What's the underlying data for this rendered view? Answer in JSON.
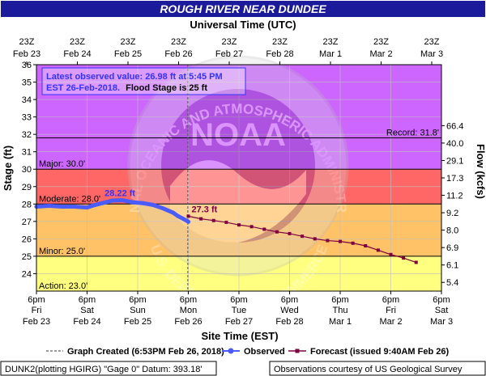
{
  "chart_data": {
    "type": "line",
    "title": "ROUGH RIVER NEAR DUNDEE",
    "top_axis_label": "Universal Time (UTC)",
    "bottom_axis_label": "Site Time (EST)",
    "ylabel_left": "Stage (ft)",
    "ylabel_right": "Flow (kcfs)",
    "ylim": [
      23.0,
      36.0
    ],
    "xlim": [
      "2018-02-23 18:00",
      "2018-03-03 18:00"
    ],
    "left_ticks": [
      24,
      25,
      26,
      27,
      28,
      29,
      30,
      31,
      32,
      33,
      34,
      35,
      36
    ],
    "right_ticks": [
      {
        "stage": 23.5,
        "label": "5.4"
      },
      {
        "stage": 24.5,
        "label": "6.1"
      },
      {
        "stage": 25.5,
        "label": "6.9"
      },
      {
        "stage": 26.5,
        "label": "8.0"
      },
      {
        "stage": 27.5,
        "label": "9.2"
      },
      {
        "stage": 28.5,
        "label": "11.2"
      },
      {
        "stage": 29.5,
        "label": "17.3"
      },
      {
        "stage": 30.5,
        "label": "29.1"
      },
      {
        "stage": 31.5,
        "label": "40.0"
      },
      {
        "stage": 32.5,
        "label": "66.4"
      }
    ],
    "top_ticks": [
      {
        "line1": "23Z",
        "line2": "Feb 23"
      },
      {
        "line1": "23Z",
        "line2": "Feb 24"
      },
      {
        "line1": "23Z",
        "line2": "Feb 25"
      },
      {
        "line1": "23Z",
        "line2": "Feb 26"
      },
      {
        "line1": "23Z",
        "line2": "Feb 27"
      },
      {
        "line1": "23Z",
        "line2": "Feb 28"
      },
      {
        "line1": "23Z",
        "line2": "Mar 1"
      },
      {
        "line1": "23Z",
        "line2": "Mar 2"
      },
      {
        "line1": "23Z",
        "line2": "Mar 3"
      }
    ],
    "bottom_ticks": [
      {
        "line1": "6pm",
        "line2": "Fri",
        "line3": "Feb 23"
      },
      {
        "line1": "6pm",
        "line2": "Sat",
        "line3": "Feb 24"
      },
      {
        "line1": "6pm",
        "line2": "Sun",
        "line3": "Feb 25"
      },
      {
        "line1": "6pm",
        "line2": "Mon",
        "line3": "Feb 26"
      },
      {
        "line1": "6pm",
        "line2": "Tue",
        "line3": "Feb 27"
      },
      {
        "line1": "6pm",
        "line2": "Wed",
        "line3": "Feb 28"
      },
      {
        "line1": "6pm",
        "line2": "Thu",
        "line3": "Mar 1"
      },
      {
        "line1": "6pm",
        "line2": "Fri",
        "line3": "Mar 2"
      },
      {
        "line1": "6pm",
        "line2": "Sat",
        "line3": "Mar 3"
      }
    ],
    "bands": [
      {
        "name": "Action",
        "from": 23.0,
        "to": 25.0,
        "color": "#ffff80",
        "label": "Action: 23.0'"
      },
      {
        "name": "Minor",
        "from": 25.0,
        "to": 28.0,
        "color": "#ffc266",
        "label": "Minor: 25.0'"
      },
      {
        "name": "Moderate",
        "from": 28.0,
        "to": 30.0,
        "color": "#ff6666",
        "label": "Moderate: 28.0'"
      },
      {
        "name": "Major",
        "from": 30.0,
        "to": 36.0,
        "color": "#cc66ff",
        "label": "Major: 30.0'"
      }
    ],
    "record": {
      "stage": 31.8,
      "label": "Record: 31.8'"
    },
    "series": [
      {
        "name": "Observed",
        "color": "#4a5cff",
        "x_days": [
          0.0,
          0.25,
          0.5,
          0.75,
          1.0,
          1.1,
          1.3,
          1.5,
          1.7,
          1.9,
          2.1,
          2.3,
          2.5,
          2.7,
          2.8,
          2.9,
          3.0
        ],
        "values": [
          27.85,
          27.9,
          27.85,
          27.85,
          27.8,
          27.9,
          28.05,
          28.2,
          28.22,
          28.1,
          28.05,
          27.95,
          27.75,
          27.5,
          27.3,
          27.15,
          26.98
        ]
      },
      {
        "name": "Forecast (issued 9:40AM Feb 26)",
        "color": "#800040",
        "x_days": [
          3.0,
          3.25,
          3.5,
          3.75,
          4.0,
          4.25,
          4.5,
          4.75,
          5.0,
          5.25,
          5.5,
          5.75,
          6.0,
          6.25,
          6.5,
          6.75,
          7.0,
          7.25,
          7.5
        ],
        "values": [
          27.3,
          27.15,
          27.05,
          26.95,
          26.8,
          26.7,
          26.55,
          26.4,
          26.3,
          26.15,
          26.0,
          25.9,
          25.85,
          25.75,
          25.6,
          25.35,
          25.1,
          24.9,
          24.65
        ]
      }
    ],
    "annotations": [
      {
        "text": "28.22 ft",
        "x_days": 1.65,
        "value": 28.22,
        "color": "#3333ff"
      },
      {
        "text": "27.3 ft",
        "x_days": 3.0,
        "value": 27.3,
        "color": "#800040"
      }
    ],
    "graph_created_marker": {
      "x_days": 2.99,
      "label": "Graph Created (6:53PM Feb 26, 2018)"
    },
    "info_box": {
      "line1": "Latest observed value: 26.98 ft at 5:45 PM",
      "line2_blue": "EST 26-Feb-2018.",
      "line2_black": "Flood Stage is 25 ft"
    },
    "legend": {
      "observed_label": "Observed",
      "forecast_label": "Forecast (issued 9:40AM Feb 26)"
    },
    "footer_left": "DUNK2(plotting HGIRG) \"Gage 0\" Datum: 393.18'",
    "footer_right": "Observations courtesy of US Geological Survey",
    "watermark_text": "NOAA",
    "watermark_ring_top": "NATIONAL OCEANIC AND ATMOSPHERIC ADMINISTRATION",
    "watermark_ring_bottom": "U.S. DEPARTMENT OF COMMERCE",
    "colors": {
      "title_bg": "#1a1a9a",
      "plot_frame": "#000000",
      "grid": "#bfbfbf"
    }
  }
}
